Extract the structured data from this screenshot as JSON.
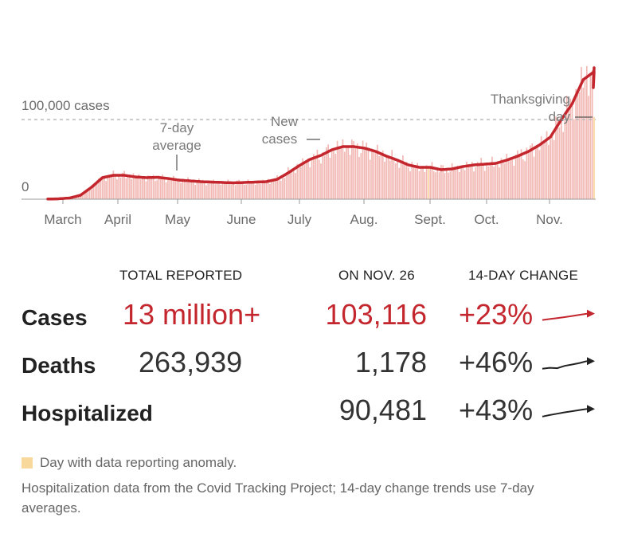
{
  "chart_data": {
    "type": "bar",
    "title": "",
    "xlabel": "",
    "ylabel": "New cases",
    "x_labels": [
      "March",
      "April",
      "May",
      "June",
      "July",
      "Aug.",
      "Sept.",
      "Oct.",
      "Nov."
    ],
    "ylim": [
      0,
      180000
    ],
    "y_ticks": [
      {
        "value": 0,
        "label": "0"
      },
      {
        "value": 100000,
        "label": "100,000 cases"
      }
    ],
    "series": [
      {
        "name": "New cases",
        "style": "bars",
        "color": "#f2b8b4",
        "daily_start": "Feb. 28",
        "daily_end": "Nov. 26",
        "weekly_averages": [
          200,
          500,
          1500,
          5000,
          15000,
          27000,
          30000,
          30000,
          28000,
          27000,
          27500,
          26000,
          24000,
          23000,
          22000,
          21500,
          21000,
          20500,
          21000,
          21500,
          22000,
          25000,
          33000,
          42000,
          50000,
          55000,
          62000,
          66000,
          66000,
          64000,
          60000,
          54000,
          49000,
          43000,
          40000,
          40000,
          37000,
          38000,
          41000,
          43000,
          44000,
          45000,
          49000,
          54000,
          60000,
          68000,
          78000,
          100000,
          120000,
          150000,
          160000
        ]
      },
      {
        "name": "7-day average",
        "style": "line",
        "color": "#c4262e",
        "weekly_averages": [
          200,
          500,
          1500,
          5000,
          15000,
          27000,
          30000,
          30000,
          28000,
          27000,
          27500,
          26000,
          24000,
          23000,
          22000,
          21500,
          21000,
          20500,
          21000,
          21500,
          22000,
          25000,
          33000,
          42000,
          50000,
          55000,
          62000,
          66000,
          66000,
          64000,
          60000,
          54000,
          49000,
          43000,
          40000,
          40000,
          37000,
          38000,
          41000,
          43000,
          44000,
          45000,
          49000,
          54000,
          60000,
          68000,
          78000,
          100000,
          120000,
          150000,
          160000
        ]
      }
    ],
    "anomaly_days": [
      "Sept. 8",
      "Nov. 26"
    ],
    "annotations": [
      {
        "text_lines": [
          "7-day",
          "average"
        ],
        "target": "7-day average line, early May"
      },
      {
        "text_lines": [
          "New",
          "cases"
        ],
        "target": "bars, early July"
      },
      {
        "text_lines": [
          "Thanksgiving",
          "day"
        ],
        "target": "Nov. 26"
      }
    ],
    "colors": {
      "line": "#c4262e",
      "bars": "#f2b8b4",
      "anomaly": "#f9d89c",
      "gridline": "#bbbbbb"
    }
  },
  "table": {
    "headers": {
      "total": "TOTAL REPORTED",
      "day": "ON NOV. 26",
      "change": "14-DAY CHANGE"
    },
    "rows": [
      {
        "label": "Cases",
        "total": "13 million+",
        "day": "103,116",
        "change": "+23%",
        "color": "#c4262e",
        "trend": [
          0.35,
          0.4,
          0.45,
          0.5,
          0.56,
          0.62,
          0.68
        ]
      },
      {
        "label": "Deaths",
        "total": "263,939",
        "day": "1,178",
        "change": "+46%",
        "color": "#222222",
        "trend": [
          0.3,
          0.35,
          0.33,
          0.45,
          0.52,
          0.6,
          0.7
        ]
      },
      {
        "label": "Hospitalized",
        "total": "",
        "day": "90,481",
        "change": "+43%",
        "color": "#222222",
        "trend": [
          0.3,
          0.38,
          0.45,
          0.52,
          0.58,
          0.64,
          0.7
        ]
      }
    ]
  },
  "legend": {
    "anomaly_label": "Day with data reporting anomaly."
  },
  "footnote": "Hospitalization data from the Covid Tracking Project; 14-day change trends use 7-day averages."
}
